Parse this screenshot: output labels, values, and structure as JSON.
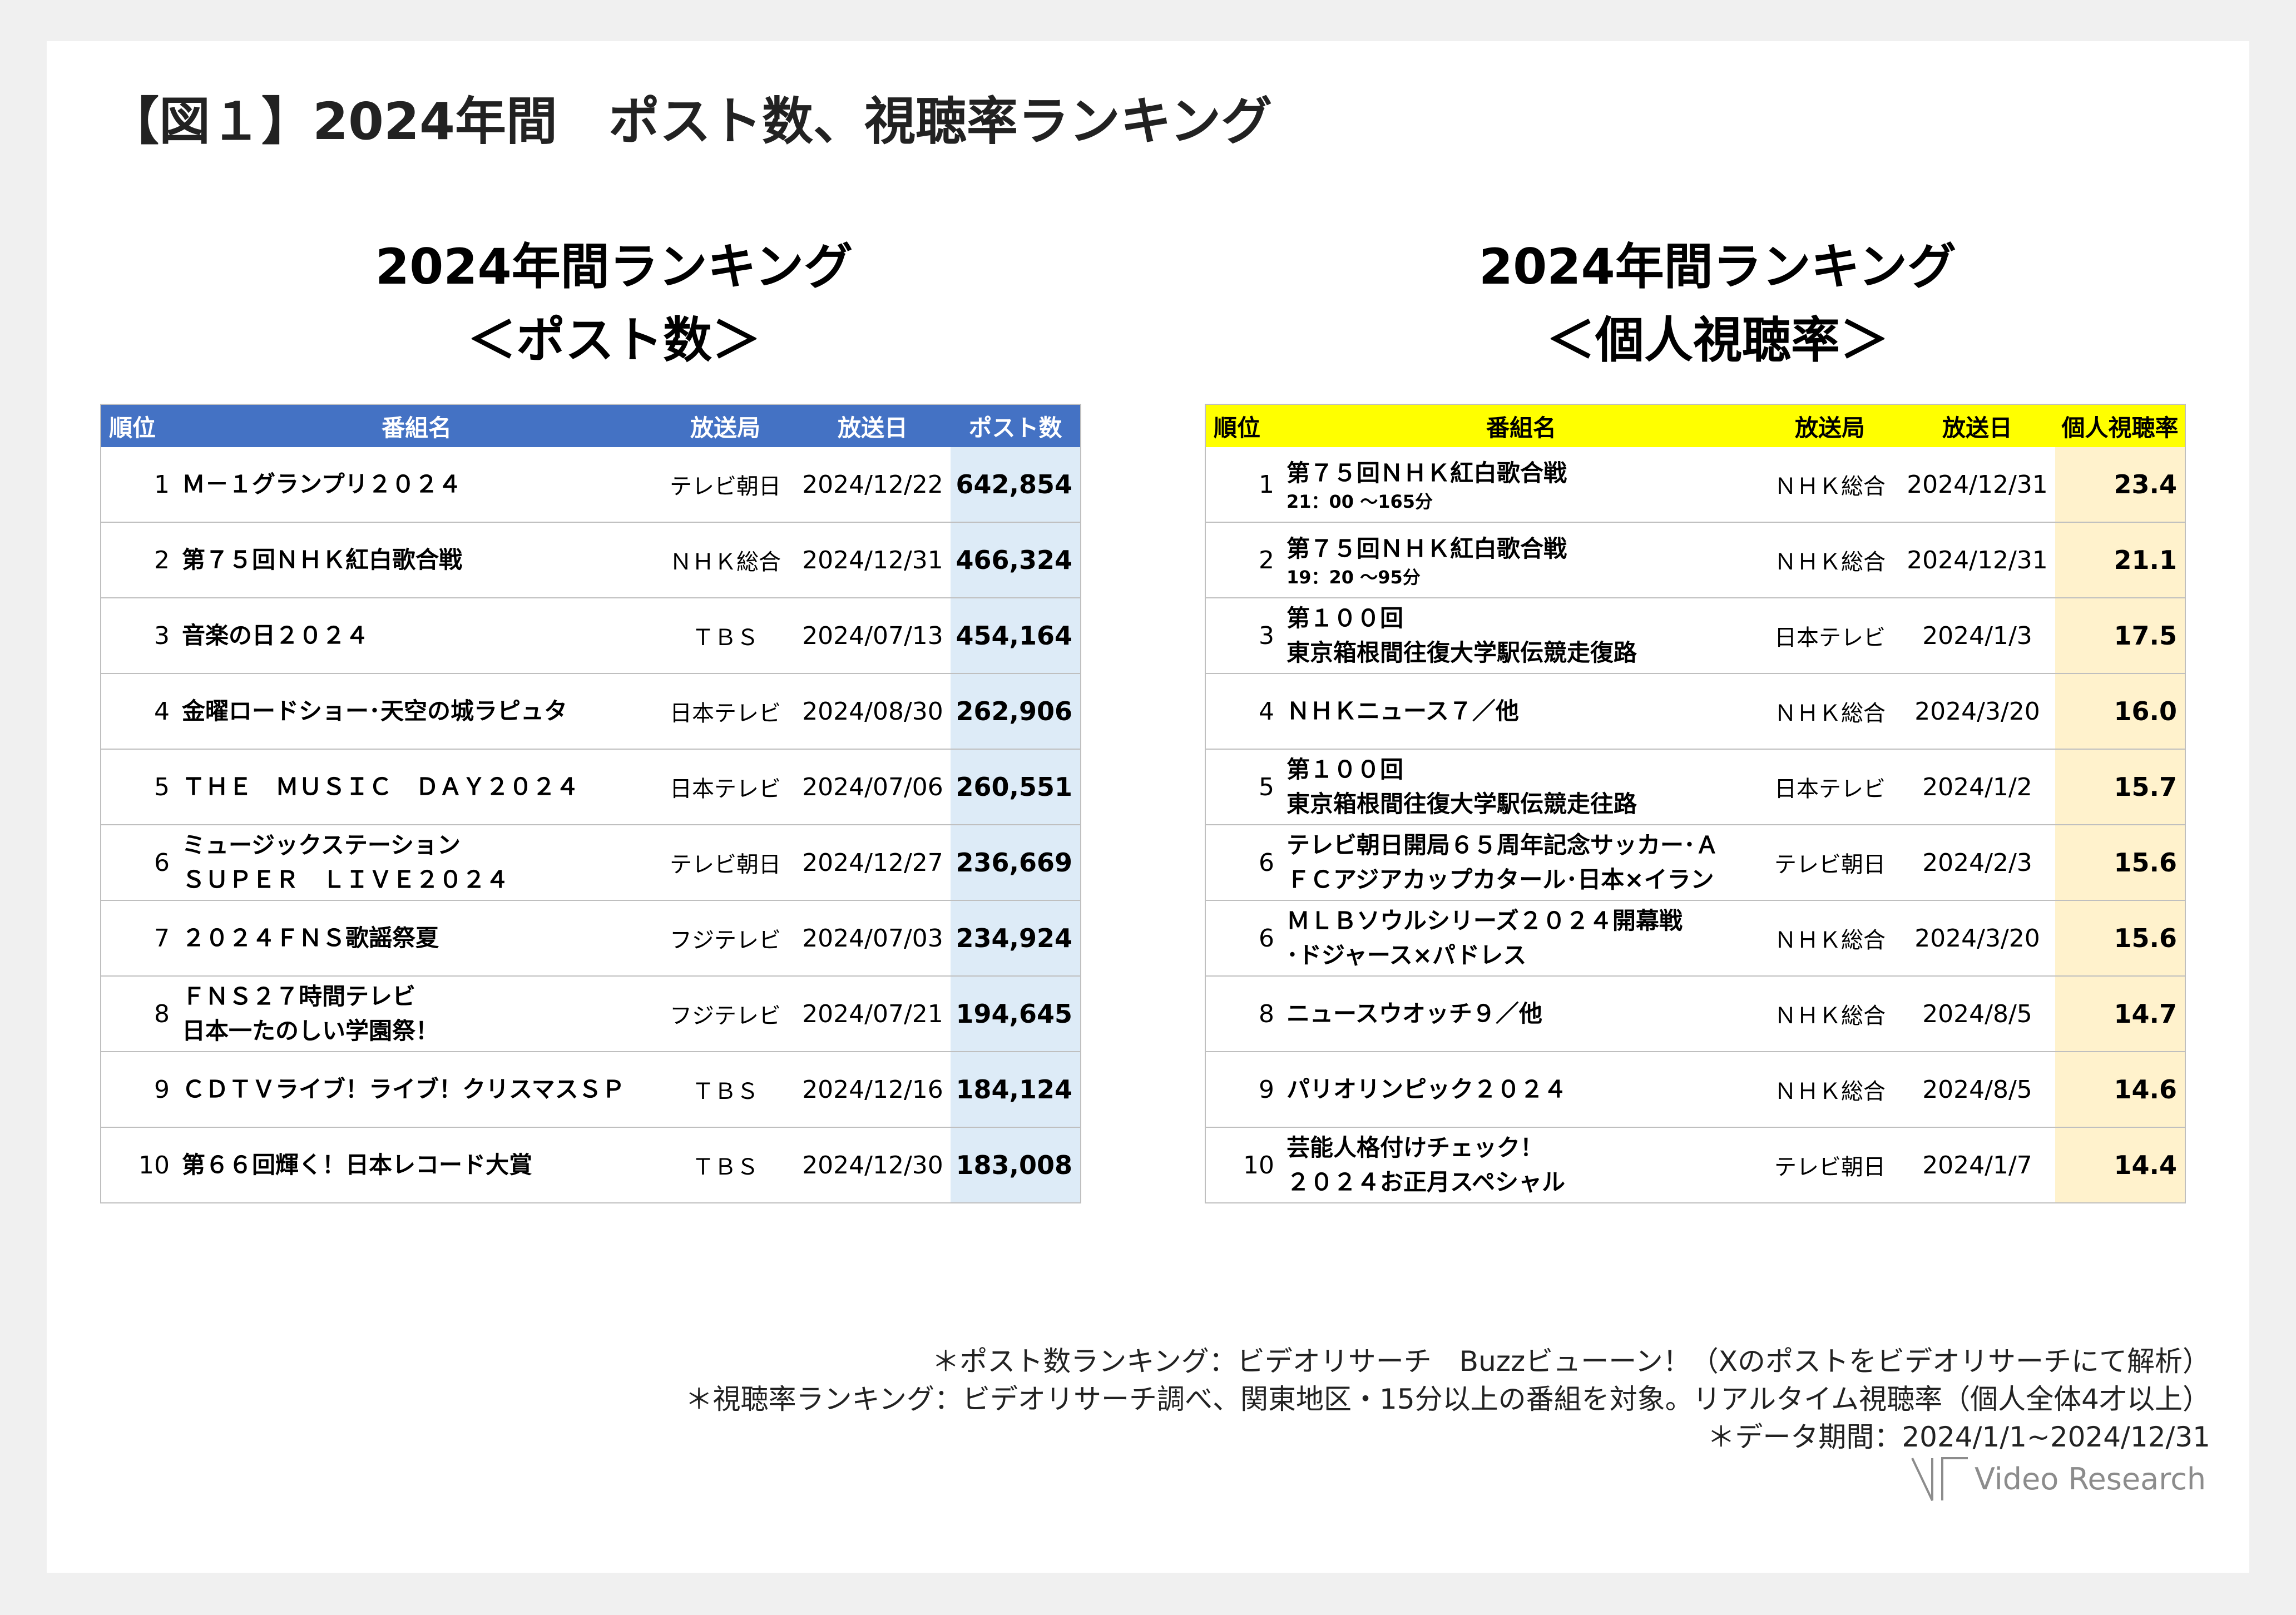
{
  "page": {
    "title": "【図１】2024年間　ポスト数、視聴率ランキング"
  },
  "posts_section": {
    "title_line1": "2024年間ランキング",
    "title_line2": "＜ポスト数＞",
    "headers": {
      "rank": "順位",
      "program": "番組名",
      "station": "放送局",
      "date": "放送日",
      "metric": "ポスト数"
    },
    "rows": [
      {
        "rank": "1",
        "program": [
          "Ｍ－１グランプリ２０２４"
        ],
        "station": "テレビ朝日",
        "date": "2024/12/22",
        "metric": "642,854"
      },
      {
        "rank": "2",
        "program": [
          "第７５回ＮＨＫ紅白歌合戦"
        ],
        "station": "ＮＨＫ総合",
        "date": "2024/12/31",
        "metric": "466,324"
      },
      {
        "rank": "3",
        "program": [
          "音楽の日２０２４"
        ],
        "station": "ＴＢＳ",
        "date": "2024/07/13",
        "metric": "454,164"
      },
      {
        "rank": "4",
        "program": [
          "金曜ロードショー･天空の城ラピュタ"
        ],
        "station": "日本テレビ",
        "date": "2024/08/30",
        "metric": "262,906"
      },
      {
        "rank": "5",
        "program": [
          "ＴＨＥ　ＭＵＳＩＣ　ＤＡＹ２０２４"
        ],
        "station": "日本テレビ",
        "date": "2024/07/06",
        "metric": "260,551"
      },
      {
        "rank": "6",
        "program": [
          "ミュージックステーション",
          "ＳＵＰＥＲ　ＬＩＶＥ２０２４"
        ],
        "station": "テレビ朝日",
        "date": "2024/12/27",
        "metric": "236,669"
      },
      {
        "rank": "7",
        "program": [
          "２０２４ＦＮＳ歌謡祭夏"
        ],
        "station": "フジテレビ",
        "date": "2024/07/03",
        "metric": "234,924"
      },
      {
        "rank": "8",
        "program": [
          "ＦＮＳ２７時間テレビ",
          "日本一たのしい学園祭！"
        ],
        "station": "フジテレビ",
        "date": "2024/07/21",
        "metric": "194,645"
      },
      {
        "rank": "9",
        "program": [
          "ＣＤＴＶライブ！ライブ！クリスマスＳＰ"
        ],
        "station": "ＴＢＳ",
        "date": "2024/12/16",
        "metric": "184,124"
      },
      {
        "rank": "10",
        "program": [
          "第６６回輝く！日本レコード大賞"
        ],
        "station": "ＴＢＳ",
        "date": "2024/12/30",
        "metric": "183,008"
      }
    ]
  },
  "ratings_section": {
    "title_line1": "2024年間ランキング",
    "title_line2": "＜個人視聴率＞",
    "headers": {
      "rank": "順位",
      "program": "番組名",
      "station": "放送局",
      "date": "放送日",
      "metric": "個人視聴率"
    },
    "rows": [
      {
        "rank": "1",
        "program": [
          "第７５回ＮＨＫ紅白歌合戦"
        ],
        "sub": "21：00 ～165分",
        "station": "ＮＨＫ総合",
        "date": "2024/12/31",
        "metric": "23.4"
      },
      {
        "rank": "2",
        "program": [
          "第７５回ＮＨＫ紅白歌合戦"
        ],
        "sub": "19：20 ～95分",
        "station": "ＮＨＫ総合",
        "date": "2024/12/31",
        "metric": "21.1"
      },
      {
        "rank": "3",
        "program": [
          "第１００回",
          "東京箱根間往復大学駅伝競走復路"
        ],
        "station": "日本テレビ",
        "date": "2024/1/3",
        "metric": "17.5"
      },
      {
        "rank": "4",
        "program": [
          "ＮＨＫニュース７／他"
        ],
        "station": "ＮＨＫ総合",
        "date": "2024/3/20",
        "metric": "16.0"
      },
      {
        "rank": "5",
        "program": [
          "第１００回",
          "東京箱根間往復大学駅伝競走往路"
        ],
        "station": "日本テレビ",
        "date": "2024/1/2",
        "metric": "15.7"
      },
      {
        "rank": "6",
        "program": [
          "テレビ朝日開局６５周年記念サッカー･Ａ",
          "ＦＣアジアカップカタール･日本×イラン"
        ],
        "station": "テレビ朝日",
        "date": "2024/2/3",
        "metric": "15.6"
      },
      {
        "rank": "6",
        "program": [
          "ＭＬＢソウルシリーズ２０２４開幕戦",
          "･ドジャース×パドレス"
        ],
        "station": "ＮＨＫ総合",
        "date": "2024/3/20",
        "metric": "15.6"
      },
      {
        "rank": "8",
        "program": [
          "ニュースウオッチ９／他"
        ],
        "station": "ＮＨＫ総合",
        "date": "2024/8/5",
        "metric": "14.7"
      },
      {
        "rank": "9",
        "program": [
          "パリオリンピック２０２４"
        ],
        "station": "ＮＨＫ総合",
        "date": "2024/8/5",
        "metric": "14.6"
      },
      {
        "rank": "10",
        "program": [
          "芸能人格付けチェック！",
          "２０２４お正月スペシャル"
        ],
        "station": "テレビ朝日",
        "date": "2024/1/7",
        "metric": "14.4"
      }
    ]
  },
  "notes": [
    "＊ポスト数ランキング：ビデオリサーチ　Buzzビューーン！（Xのポストをビデオリサーチにて解析）",
    "＊視聴率ランキング：ビデオリサーチ調べ、関東地区・15分以上の番組を対象。リアルタイム視聴率（個人全体4才以上）",
    "＊データ期間：2024/1/1~2024/12/31"
  ],
  "logo": {
    "text": "Video Research",
    "icon": "video-research-logo-icon"
  }
}
